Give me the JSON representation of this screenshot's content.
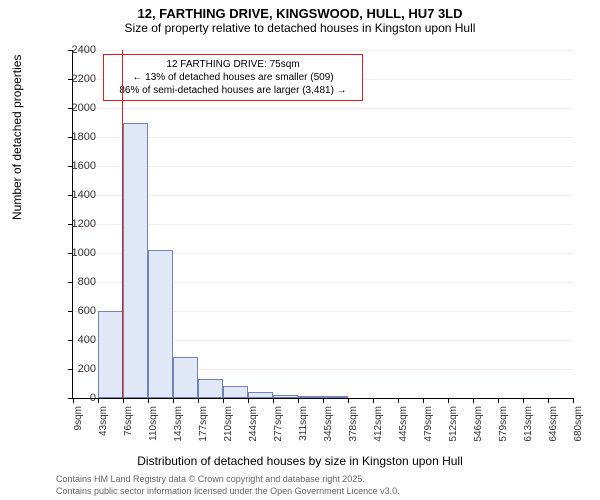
{
  "title_main": "12, FARTHING DRIVE, KINGSWOOD, HULL, HU7 3LD",
  "title_sub": "Size of property relative to detached houses in Kingston upon Hull",
  "y_axis_label": "Number of detached properties",
  "x_axis_label": "Distribution of detached houses by size in Kingston upon Hull",
  "footer1": "Contains HM Land Registry data © Crown copyright and database right 2025.",
  "footer2": "Contains public sector information licensed under the Open Government Licence v3.0.",
  "annotation_line1": "12 FARTHING DRIVE: 75sqm",
  "annotation_line2": "← 13% of detached houses are smaller (509)",
  "annotation_line3": "86% of semi-detached houses are larger (3,481) →",
  "chart": {
    "type": "histogram",
    "background_color": "#ffffff",
    "grid_color": "#fde9e9",
    "bar_fill": "#e0e8f8",
    "bar_stroke": "#7084b8",
    "marker_color": "#e02020",
    "annotation_border": "#e02020",
    "ylim": [
      0,
      2400
    ],
    "yticks": [
      0,
      200,
      400,
      600,
      800,
      1000,
      1200,
      1400,
      1600,
      1800,
      2000,
      2200,
      2400
    ],
    "x_start": 9,
    "x_step": 33.5,
    "xtick_labels": [
      "9sqm",
      "43sqm",
      "76sqm",
      "110sqm",
      "143sqm",
      "177sqm",
      "210sqm",
      "244sqm",
      "277sqm",
      "311sqm",
      "345sqm",
      "378sqm",
      "412sqm",
      "445sqm",
      "479sqm",
      "512sqm",
      "546sqm",
      "579sqm",
      "613sqm",
      "646sqm",
      "680sqm"
    ],
    "marker_x_value": 75,
    "values": [
      0,
      600,
      1900,
      1020,
      280,
      130,
      80,
      40,
      22,
      12,
      8,
      0,
      0,
      0,
      0,
      0,
      0,
      0,
      0,
      0
    ],
    "title_fontsize": 13,
    "label_fontsize": 12,
    "tick_fontsize": 10
  }
}
